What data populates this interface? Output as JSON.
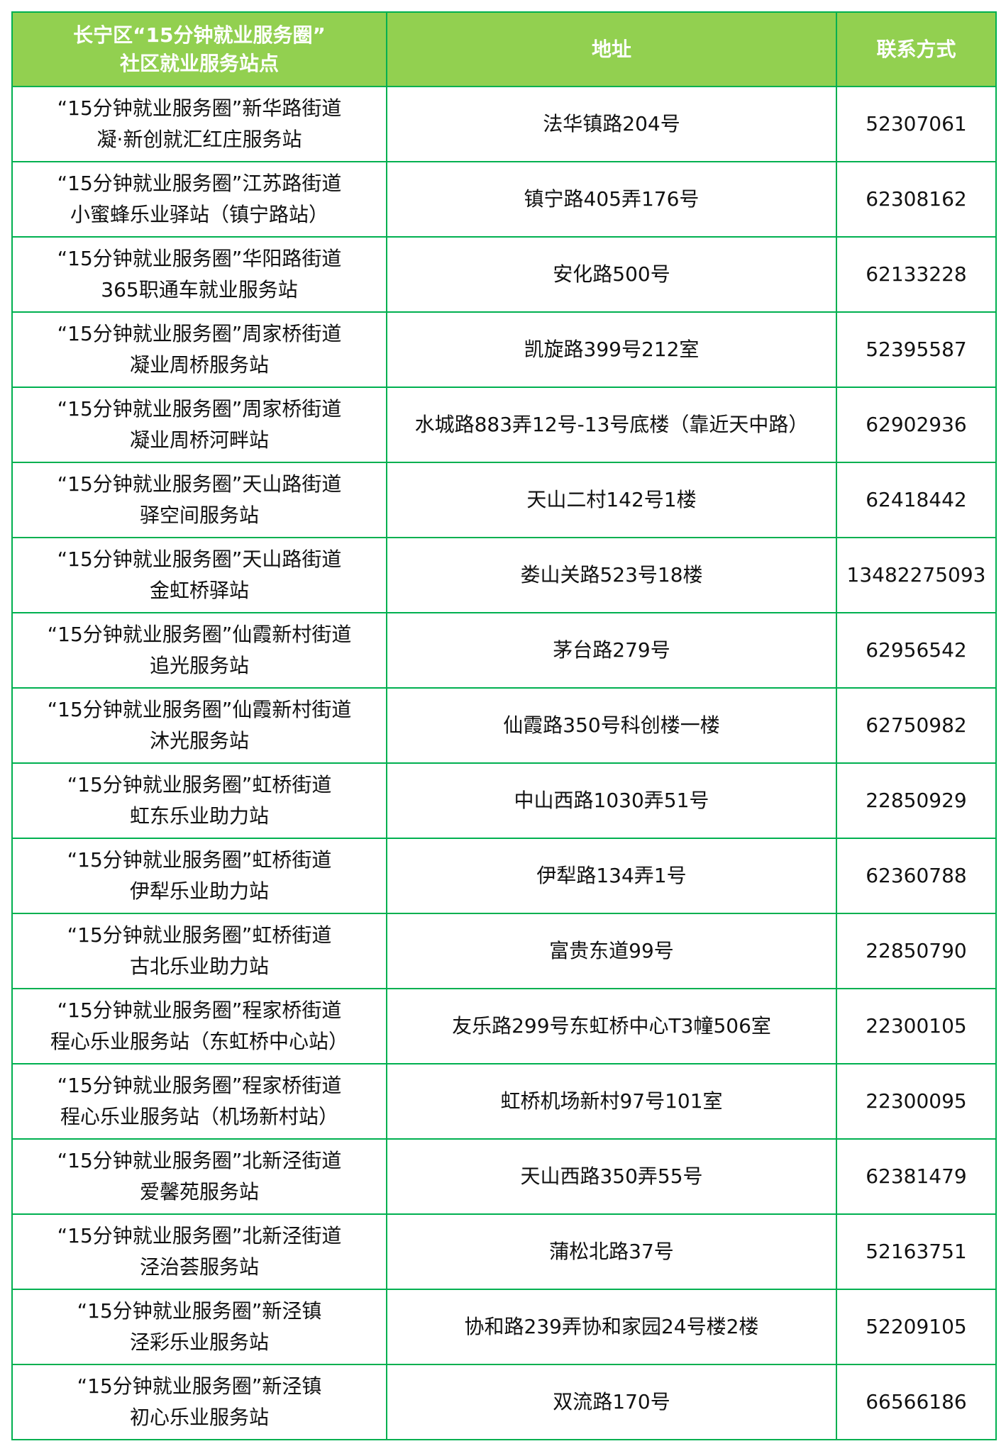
{
  "header": {
    "col1_line1": "长宁区“15分钟就业服务圈”",
    "col1_line2": "社区就业服务站点",
    "col2": "地址",
    "col3": "联系方式"
  },
  "colors": {
    "header_bg": "#92D050",
    "border": "#00B050",
    "header_text": "#FFFFFF"
  },
  "rows": [
    {
      "name1": "“15分钟就业服务圈”新华路街道",
      "name2": "凝·新创就汇红庄服务站",
      "address": "法华镇路204号",
      "phone": "52307061"
    },
    {
      "name1": "“15分钟就业服务圈”江苏路街道",
      "name2": "小蜜蜂乐业驿站（镇宁路站）",
      "address": "镇宁路405弄176号",
      "phone": "62308162"
    },
    {
      "name1": "“15分钟就业服务圈”华阳路街道",
      "name2": "365职通车就业服务站",
      "address": "安化路500号",
      "phone": "62133228"
    },
    {
      "name1": "“15分钟就业服务圈”周家桥街道",
      "name2": "凝业周桥服务站",
      "address": "凯旋路399号212室",
      "phone": "52395587"
    },
    {
      "name1": "“15分钟就业服务圈”周家桥街道",
      "name2": "凝业周桥河畔站",
      "address": "水城路883弄12号-13号底楼（靠近天中路）",
      "phone": "62902936"
    },
    {
      "name1": "“15分钟就业服务圈”天山路街道",
      "name2": "驿空间服务站",
      "address": "天山二村142号1楼",
      "phone": "62418442"
    },
    {
      "name1": "“15分钟就业服务圈”天山路街道",
      "name2": "金虹桥驿站",
      "address": "娄山关路523号18楼",
      "phone": "13482275093"
    },
    {
      "name1": "“15分钟就业服务圈”仙霞新村街道",
      "name2": "追光服务站",
      "address": "茅台路279号",
      "phone": "62956542"
    },
    {
      "name1": "“15分钟就业服务圈”仙霞新村街道",
      "name2": "沐光服务站",
      "address": "仙霞路350号科创楼一楼",
      "phone": "62750982"
    },
    {
      "name1": "“15分钟就业服务圈”虹桥街道",
      "name2": "虹东乐业助力站",
      "address": "中山西路1030弄51号",
      "phone": "22850929"
    },
    {
      "name1": "“15分钟就业服务圈”虹桥街道",
      "name2": "伊犁乐业助力站",
      "address": "伊犁路134弄1号",
      "phone": "62360788"
    },
    {
      "name1": "“15分钟就业服务圈”虹桥街道",
      "name2": "古北乐业助力站",
      "address": "富贵东道99号",
      "phone": "22850790"
    },
    {
      "name1": "“15分钟就业服务圈”程家桥街道",
      "name2": "程心乐业服务站（东虹桥中心站）",
      "address": "友乐路299号东虹桥中心T3幢506室",
      "phone": "22300105"
    },
    {
      "name1": "“15分钟就业服务圈”程家桥街道",
      "name2": "程心乐业服务站（机场新村站）",
      "address": "虹桥机场新村97号101室",
      "phone": "22300095"
    },
    {
      "name1": "“15分钟就业服务圈”北新泾街道",
      "name2": "爱馨苑服务站",
      "address": "天山西路350弄55号",
      "phone": "62381479"
    },
    {
      "name1": "“15分钟就业服务圈”北新泾街道",
      "name2": "泾治荟服务站",
      "address": "蒲松北路37号",
      "phone": "52163751"
    },
    {
      "name1": "“15分钟就业服务圈”新泾镇",
      "name2": "泾彩乐业服务站",
      "address": "协和路239弄协和家园24号楼2楼",
      "phone": "52209105"
    },
    {
      "name1": "“15分钟就业服务圈”新泾镇",
      "name2": "初心乐业服务站",
      "address": "双流路170号",
      "phone": "66566186"
    }
  ]
}
